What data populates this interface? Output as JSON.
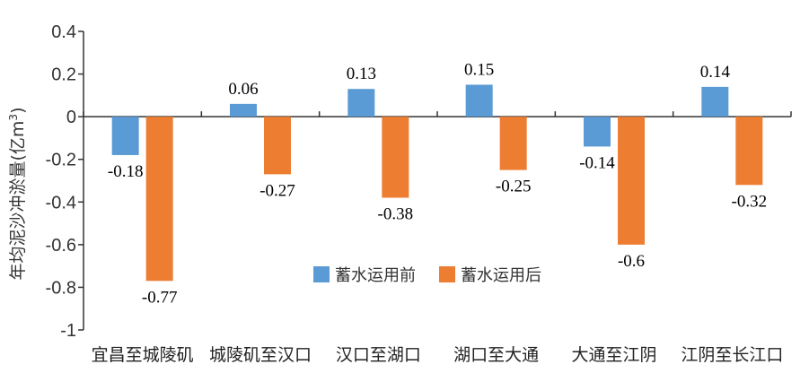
{
  "chart_data": {
    "type": "bar",
    "title": "",
    "xlabel": "",
    "ylabel": "年均泥沙冲淤量",
    "ylabel_unit_prefix": "(亿m",
    "ylabel_unit_sup": "3",
    "ylabel_unit_suffix": ")",
    "ylim": [
      -1,
      0.4
    ],
    "yticks": [
      0.4,
      0.2,
      0,
      -0.2,
      -0.4,
      -0.6,
      -0.8,
      -1
    ],
    "ytick_labels": [
      "0.4",
      "0.2",
      "0",
      "-0.2",
      "-0.4",
      "-0.6",
      "-0.8",
      "-1"
    ],
    "grid": false,
    "legend_position": "bottom-center",
    "categories": [
      "宜昌至城陵矶",
      "城陵矶至汉口",
      "汉口至湖口",
      "湖口至大通",
      "大通至江阴",
      "江阴至长江口"
    ],
    "series": [
      {
        "name": "蓄水运用前",
        "color": "#5b9bd5",
        "values": [
          -0.18,
          0.06,
          0.13,
          0.15,
          -0.14,
          0.14
        ],
        "labels": [
          "-0.18",
          "0.06",
          "0.13",
          "0.15",
          "-0.14",
          "0.14"
        ]
      },
      {
        "name": "蓄水运用后",
        "color": "#ed7d31",
        "values": [
          -0.77,
          -0.27,
          -0.38,
          -0.25,
          -0.6,
          -0.32
        ],
        "labels": [
          "-0.77",
          "-0.27",
          "-0.38",
          "-0.25",
          "-0.6",
          "-0.32"
        ]
      }
    ]
  }
}
